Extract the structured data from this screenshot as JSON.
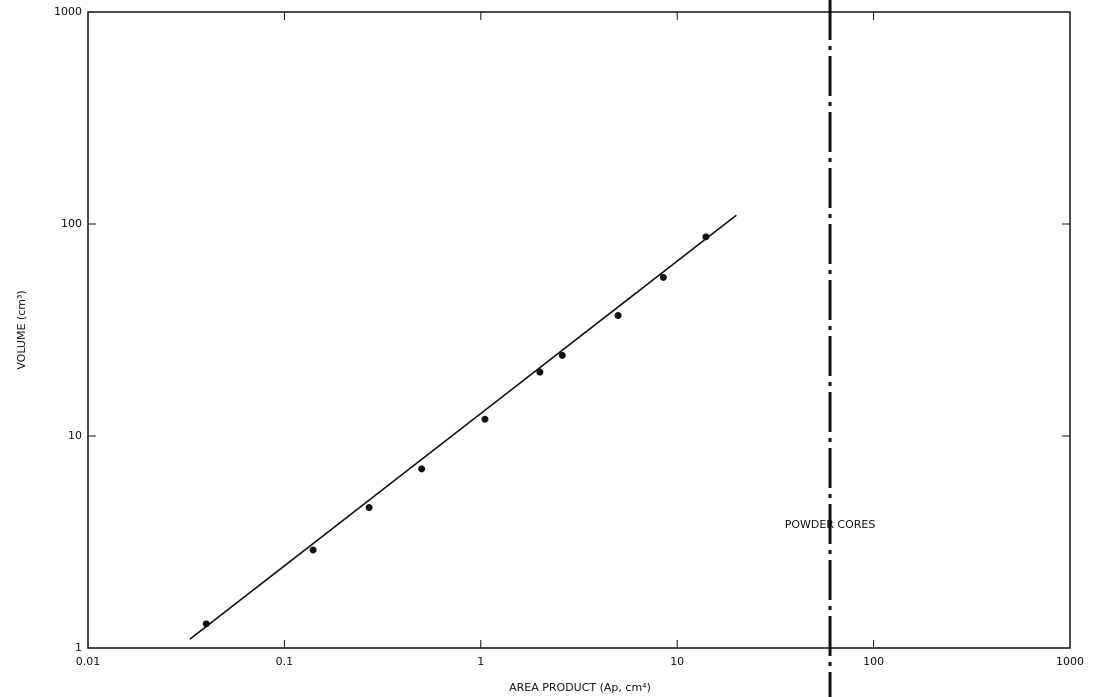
{
  "chart_data": {
    "type": "scatter",
    "x_label": "AREA PRODUCT (Ap, cm⁴)",
    "y_label": "VOLUME (cm³)",
    "log_x": true,
    "log_y": true,
    "xlim": [
      0.01,
      1000
    ],
    "ylim": [
      1,
      1000
    ],
    "xticks": [
      0.01,
      0.1,
      1,
      10,
      100,
      1000
    ],
    "yticks": [
      1,
      10,
      100,
      1000
    ],
    "color": "#111111",
    "series": [
      {
        "x": [
          0.04,
          0.14,
          0.27,
          0.5,
          1.05,
          2,
          2.6,
          5,
          8.5,
          14
        ],
        "values": [
          1.3,
          2.9,
          4.6,
          7,
          12,
          20,
          24,
          37,
          56,
          87
        ]
      }
    ],
    "fit_line": {
      "x": [
        0.033,
        20
      ],
      "values": [
        1.1,
        110
      ]
    },
    "reference_line": {
      "x": 60,
      "label": "POWDER CORES",
      "label_y": 3.8
    }
  }
}
